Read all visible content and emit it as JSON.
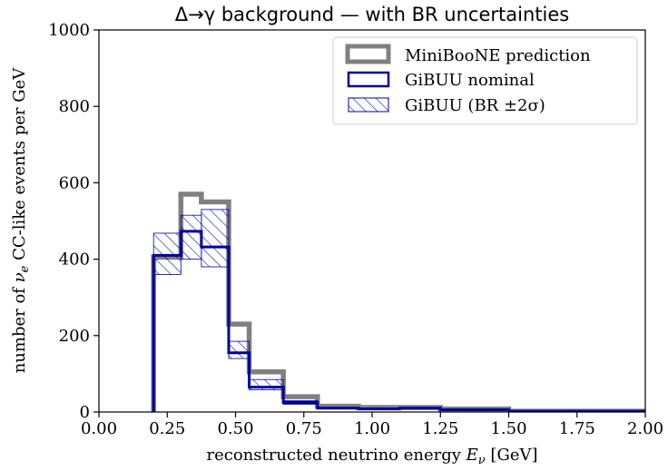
{
  "chart_data": {
    "type": "histogram",
    "title": "Δ→γ background — with BR uncertainties",
    "xlabel": "reconstructed neutrino energy E_ν [GeV]",
    "ylabel": "number of ν_e CC-like events per GeV",
    "xlim": [
      0.0,
      2.0
    ],
    "ylim": [
      0,
      1000
    ],
    "xticks": [
      0.0,
      0.25,
      0.5,
      0.75,
      1.0,
      1.25,
      1.5,
      1.75,
      2.0
    ],
    "xtick_labels": [
      "0.00",
      "0.25",
      "0.50",
      "0.75",
      "1.00",
      "1.25",
      "1.50",
      "1.75",
      "2.00"
    ],
    "yticks": [
      0,
      200,
      400,
      600,
      800,
      1000
    ],
    "ytick_labels": [
      "0",
      "200",
      "400",
      "600",
      "800",
      "1000"
    ],
    "bin_edges": [
      0.2,
      0.3,
      0.375,
      0.475,
      0.55,
      0.675,
      0.8,
      0.95,
      1.1,
      1.25,
      1.5,
      3.0
    ],
    "series": [
      {
        "name": "MiniBooNE prediction",
        "kind": "step",
        "color": "#808080",
        "values": [
          405,
          570,
          550,
          230,
          105,
          40,
          15,
          12,
          12,
          8,
          2
        ]
      },
      {
        "name": "GiBUU nominal",
        "kind": "step",
        "color": "#00009a",
        "values": [
          410,
          473,
          432,
          155,
          65,
          25,
          10,
          8,
          10,
          6,
          2
        ]
      },
      {
        "name": "GiBUU (BR ±2σ)",
        "kind": "band",
        "color": "#00009a",
        "lower": [
          360,
          400,
          380,
          140,
          58,
          20,
          8,
          7,
          8,
          5,
          1
        ],
        "upper": [
          468,
          515,
          530,
          185,
          85,
          30,
          12,
          10,
          12,
          7,
          3
        ]
      }
    ],
    "legend_position": "top-right",
    "grid": false
  }
}
